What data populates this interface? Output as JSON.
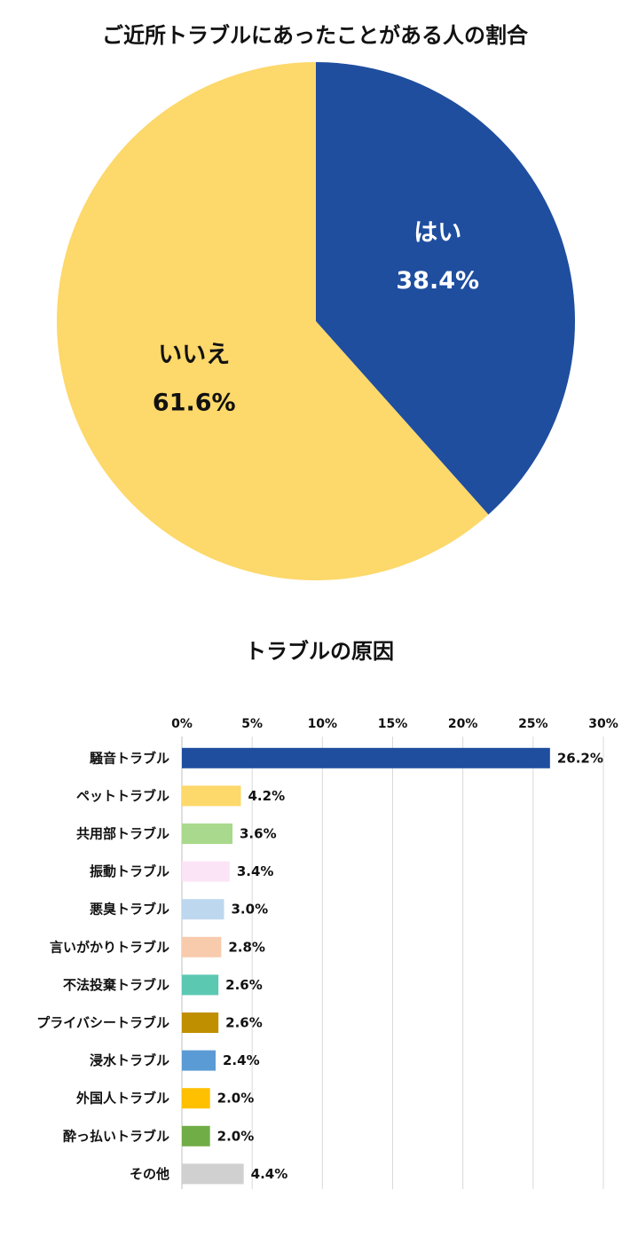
{
  "chart_data": [
    {
      "type": "pie",
      "title": "ご近所トラブルにあったことがある人の割合",
      "start": "12 o'clock, clockwise",
      "slices": [
        {
          "label": "はい",
          "value": 38.4,
          "value_text": "38.4%",
          "color": "#1F4E9F",
          "label_color": "#FFFFFF"
        },
        {
          "label": "いいえ",
          "value": 61.6,
          "value_text": "61.6%",
          "color": "#FDD86A",
          "label_color": "#111111"
        }
      ]
    },
    {
      "type": "bar",
      "orientation": "horizontal",
      "title": "トラブルの原因",
      "xlim": [
        0,
        30
      ],
      "xticks": [
        0,
        5,
        10,
        15,
        20,
        25,
        30
      ],
      "xtick_labels": [
        "0%",
        "5%",
        "10%",
        "15%",
        "20%",
        "25%",
        "30%"
      ],
      "grid": true,
      "categories": [
        "騒音トラブル",
        "ペットトラブル",
        "共用部トラブル",
        "振動トラブル",
        "悪臭トラブル",
        "言いがかりトラブル",
        "不法投棄トラブル",
        "プライバシートラブル",
        "浸水トラブル",
        "外国人トラブル",
        "酔っ払いトラブル",
        "その他"
      ],
      "values": [
        26.2,
        4.2,
        3.6,
        3.4,
        3.0,
        2.8,
        2.6,
        2.6,
        2.4,
        2.0,
        2.0,
        4.4
      ],
      "value_labels": [
        "26.2%",
        "4.2%",
        "3.6%",
        "3.4%",
        "3.0%",
        "2.8%",
        "2.6%",
        "2.6%",
        "2.4%",
        "2.0%",
        "2.0%",
        "4.4%"
      ],
      "colors": [
        "#1F4E9F",
        "#FDD86A",
        "#A9D98C",
        "#FCE4F7",
        "#BDD7EE",
        "#F8CBAD",
        "#5BC8B2",
        "#BF8F00",
        "#5B9BD5",
        "#FFC000",
        "#70AD47",
        "#D0D0D0"
      ]
    }
  ]
}
